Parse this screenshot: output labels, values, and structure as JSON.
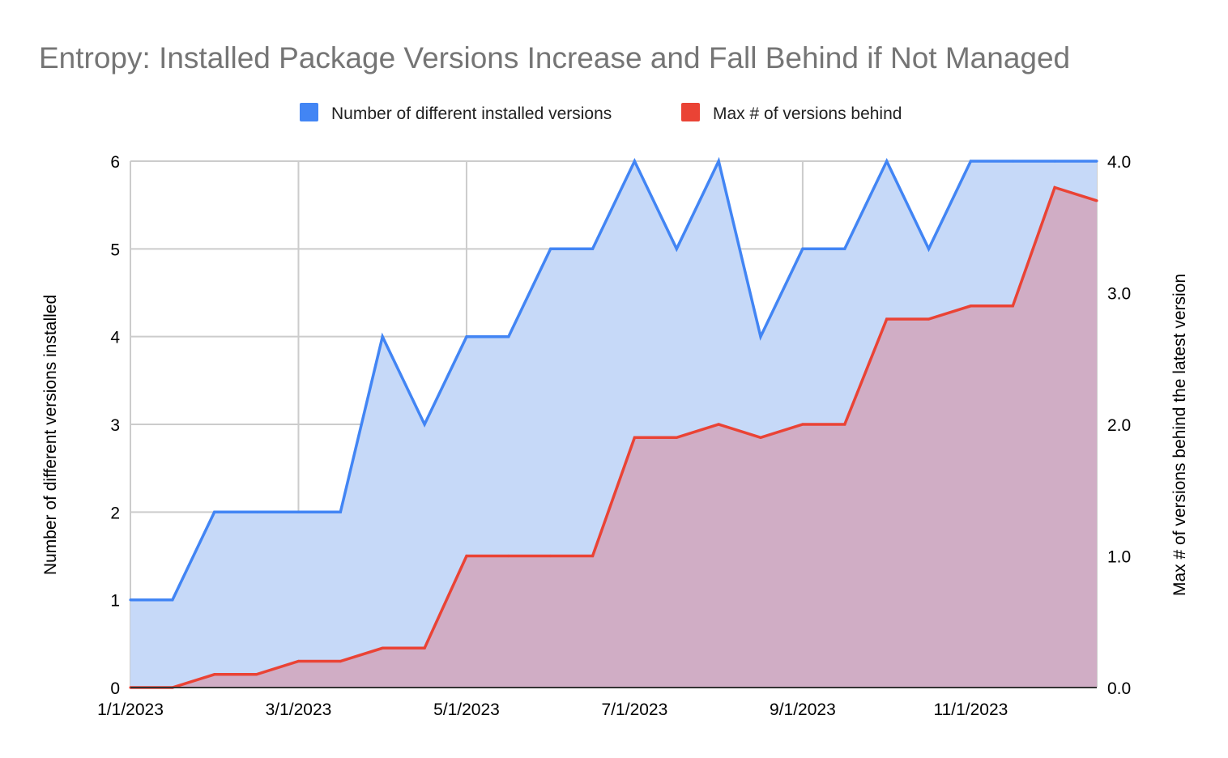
{
  "chart_data": {
    "type": "area",
    "title": "Entropy: Installed Package Versions Increase and Fall Behind if Not Managed",
    "legend_position": "top-center",
    "grid": true,
    "x": [
      "1/1/2023",
      "1/15/2023",
      "2/1/2023",
      "2/15/2023",
      "3/1/2023",
      "3/15/2023",
      "4/1/2023",
      "4/15/2023",
      "5/1/2023",
      "5/15/2023",
      "6/1/2023",
      "6/15/2023",
      "7/1/2023",
      "7/15/2023",
      "8/1/2023",
      "8/15/2023",
      "9/1/2023",
      "9/15/2023",
      "10/1/2023",
      "10/15/2023",
      "11/1/2023",
      "11/15/2023",
      "12/1/2023",
      "12/15/2023"
    ],
    "x_tick_labels": [
      "1/1/2023",
      "3/1/2023",
      "5/1/2023",
      "7/1/2023",
      "9/1/2023",
      "11/1/2023"
    ],
    "y_left": {
      "label": "Number of different versions installed",
      "range": [
        0,
        6
      ],
      "ticks": [
        "0",
        "1",
        "2",
        "3",
        "4",
        "5",
        "6"
      ]
    },
    "y_right": {
      "label": "Max # of versions behind the latest version",
      "range": [
        0,
        4
      ],
      "ticks": [
        "0.0",
        "1.0",
        "2.0",
        "3.0",
        "4.0"
      ]
    },
    "series": [
      {
        "name": "Number of different installed versions",
        "axis": "left",
        "color": "#4285f4",
        "fill": "#c6d9f8",
        "values": [
          1,
          1,
          2,
          2,
          2,
          2,
          4,
          3,
          4,
          4,
          5,
          5,
          6,
          5,
          6,
          4,
          5,
          5,
          6,
          5,
          6,
          6,
          6,
          6
        ]
      },
      {
        "name": "Max # of versions behind",
        "axis": "right",
        "color": "#ea4335",
        "fill": "#d0a9c0",
        "values": [
          0,
          0,
          0.1,
          0.1,
          0.2,
          0.2,
          0.3,
          0.3,
          1.0,
          1.0,
          1.0,
          1.0,
          1.9,
          1.9,
          2.0,
          1.9,
          2.0,
          2.0,
          2.8,
          2.8,
          2.9,
          2.9,
          3.8,
          3.7
        ]
      }
    ]
  }
}
